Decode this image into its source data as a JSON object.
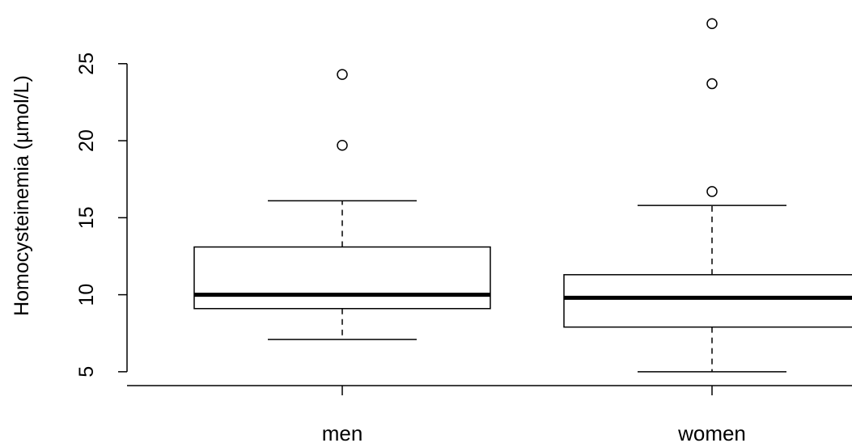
{
  "chart_data": {
    "type": "boxplot",
    "title": "",
    "xlabel": "",
    "ylabel": "Homocysteinemia (µmol/L)",
    "ylim": [
      4.1,
      28.4
    ],
    "yticks": [
      5,
      10,
      15,
      20,
      25
    ],
    "categories": [
      "men",
      "women"
    ],
    "grid": false,
    "legend": "none",
    "boxes": [
      {
        "category": "men",
        "whisker_low": 7.1,
        "q1": 9.1,
        "median": 10.0,
        "q3": 13.1,
        "whisker_high": 16.1,
        "outliers": [
          19.7,
          24.3
        ]
      },
      {
        "category": "women",
        "whisker_low": 5.0,
        "q1": 7.9,
        "median": 9.8,
        "q3": 11.3,
        "whisker_high": 15.8,
        "outliers": [
          16.7,
          23.7,
          27.6
        ]
      }
    ]
  }
}
